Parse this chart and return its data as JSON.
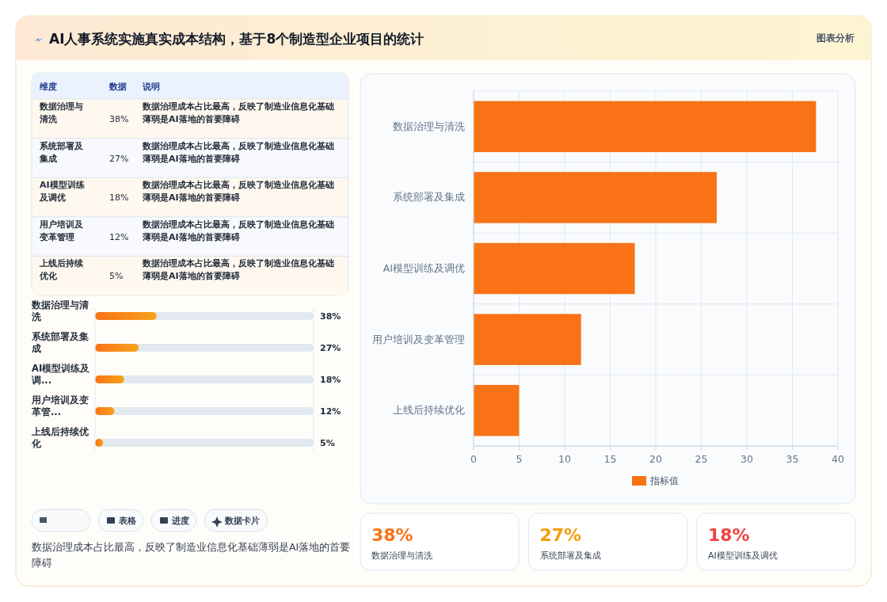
{
  "chart_data": [
    {
      "type": "other",
      "title": "AI人事系统实施真实成本结构，基于8个制造型企业项目的统计",
      "categories": [
        "数据治理与清洗",
        "系统部署及集成",
        "AI模型训练及调优",
        "用户培训及变革管理",
        "上线后持续优化"
      ],
      "value_labels": [
        "38%",
        "27%",
        "18%",
        "12%",
        "5%"
      ],
      "annotations": [
        "图表分析",
        "维度",
        "数据",
        "说明",
        "数据治理成本占比最高，反映了制造业信息化基础薄弱是AI落地的首要障碍",
        "数据治理成本占比最高，反映了制造业信息化基础薄弱是AI落地的首要障碍",
        "数据治理成本占比最高，反映了制造业信息化基础薄弱是AI落地的首要障碍",
        "数据治理成本占比最高，反映了制造业信息化基础薄弱是AI落地的首要障碍",
        "数据治理成本占比最高，反映了制造业信息化基础薄弱是AI落地的首要障碍"
      ]
    },
    {
      "type": "bar",
      "orientation": "horizontal",
      "categories": [
        "数据治理与清洗",
        "系统部署及集成",
        "AI模型训练及调...",
        "用户培训及变革管...",
        "上线后持续优化"
      ],
      "values": [
        38,
        27,
        18,
        12,
        5
      ],
      "value_labels": [
        "38%",
        "27%",
        "18%",
        "12%",
        "5%"
      ],
      "color": "#f7a21b",
      "xlim": [
        0,
        135
      ],
      "tick_labels": false,
      "annotations": [
        "表格",
        "进度",
        "数据卡片",
        "数据治理成本占比最高，反映了制造业信息化基础薄弱是AI落地的首要障碍"
      ]
    },
    {
      "type": "bar",
      "orientation": "horizontal",
      "categories": [
        "数据治理与清洗",
        "系统部署及集成",
        "AI模型训练及调优",
        "用户培训及变革管理",
        "上线后持续优化"
      ],
      "series": [
        {
          "name": "指标值",
          "color": "#f97316",
          "values": [
            37.6,
            26.7,
            17.7,
            11.8,
            5
          ]
        }
      ],
      "xlim": [
        0,
        40
      ],
      "xticks": [
        0,
        5,
        10,
        15,
        20,
        25,
        30,
        35,
        40
      ],
      "grid": true,
      "legend": "bottom"
    },
    {
      "type": "other",
      "categories": [
        "数据治理与清洗",
        "系统部署及集成",
        "AI模型训练及调优"
      ],
      "value_labels": [
        "38%",
        "27%",
        "18%"
      ]
    }
  ]
}
